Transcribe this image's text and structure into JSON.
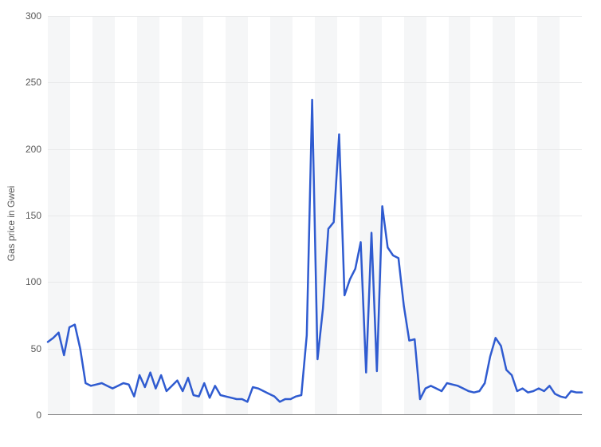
{
  "chart": {
    "type": "line",
    "y_axis_title": "Gas price in Gwei",
    "title_fontsize": 12,
    "label_fontsize": 12,
    "ylim": [
      0,
      300
    ],
    "ytick_step": 50,
    "yticks": [
      0,
      50,
      100,
      150,
      200,
      250,
      300
    ],
    "background_color": "#ffffff",
    "stripe_color": "#f5f6f7",
    "grid_color": "#e8e9ea",
    "axis_line_color": "#808080",
    "tick_label_color": "#595959",
    "line_color": "#2f5bd0",
    "line_width": 2.5,
    "stripe_count": 24,
    "values": [
      55,
      58,
      62,
      45,
      66,
      68,
      50,
      24,
      22,
      23,
      24,
      22,
      20,
      22,
      24,
      23,
      14,
      30,
      21,
      32,
      20,
      30,
      18,
      22,
      26,
      18,
      28,
      15,
      14,
      24,
      13,
      22,
      15,
      14,
      13,
      12,
      12,
      10,
      21,
      20,
      18,
      16,
      14,
      10,
      12,
      12,
      14,
      15,
      60,
      237,
      42,
      80,
      140,
      145,
      211,
      90,
      102,
      110,
      130,
      32,
      137,
      33,
      157,
      126,
      120,
      118,
      82,
      56,
      57,
      12,
      20,
      22,
      20,
      18,
      24,
      23,
      22,
      20,
      18,
      17,
      18,
      24,
      44,
      58,
      52,
      34,
      30,
      18,
      20,
      17,
      18,
      20,
      18,
      22,
      16,
      14,
      13,
      18,
      17,
      17
    ]
  }
}
